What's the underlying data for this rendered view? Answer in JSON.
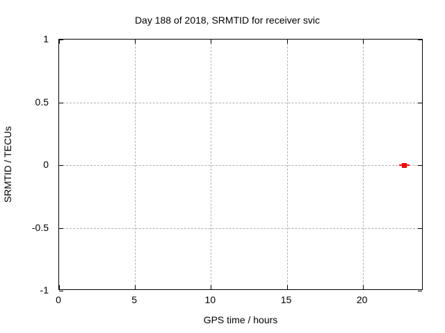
{
  "chart_data": {
    "type": "scatter",
    "title": "Day 188 of 2018, SRMTID for receiver svic",
    "xlabel": "GPS time / hours",
    "ylabel": "SRMTID / TECUs",
    "xlim": [
      0,
      24
    ],
    "ylim": [
      -1,
      1
    ],
    "xticks": {
      "values": [
        0,
        5,
        10,
        15,
        20
      ],
      "labels": [
        "0",
        "5",
        "10",
        "15",
        "20"
      ]
    },
    "yticks": {
      "values": [
        1,
        0.5,
        0,
        -0.5,
        -1
      ],
      "labels": [
        "1",
        "0.5",
        "0",
        "-0.5",
        "-1"
      ]
    },
    "grid": {
      "visible": true,
      "style": "dashed",
      "color": "#b0b0b0"
    },
    "legend": "none",
    "border_color": "#000000",
    "background_color": "#ffffff",
    "series": [
      {
        "name": "SRMTID",
        "marker": "filled-square",
        "color": "#ff0000",
        "points": [
          {
            "x": 22.75,
            "y": 0,
            "xerr": 0.35
          }
        ]
      }
    ]
  }
}
